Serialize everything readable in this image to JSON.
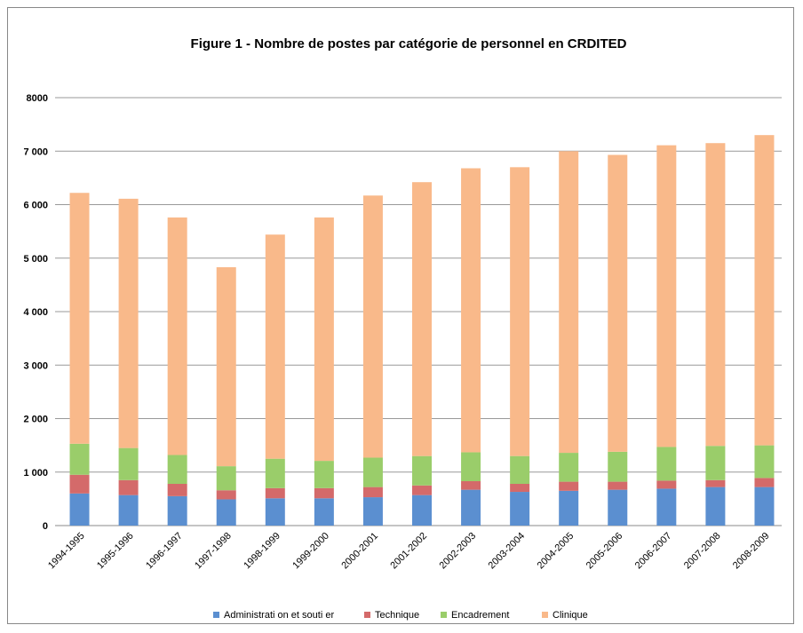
{
  "chart_data": {
    "type": "stacked_bar",
    "title": "Figure 1 - Nombre de postes par catégorie de personnel en CRDITED",
    "categories": [
      "1994-1995",
      "1995-1996",
      "1996-1997",
      "1997-1998",
      "1998-1999",
      "1999-2000",
      "2000-2001",
      "2001-2002",
      "2002-2003",
      "2003-2004",
      "2004-2005",
      "2005-2006",
      "2006-2007",
      "2007-2008",
      "2008-2009"
    ],
    "series": [
      {
        "name": "Administrati on et souti er",
        "color": "#5b8fd0",
        "values": [
          600,
          570,
          550,
          490,
          510,
          510,
          530,
          570,
          670,
          630,
          650,
          670,
          690,
          720,
          720
        ]
      },
      {
        "name": "Technique",
        "color": "#d46a6a",
        "values": [
          350,
          280,
          230,
          170,
          190,
          190,
          190,
          180,
          160,
          150,
          170,
          150,
          150,
          130,
          170
        ]
      },
      {
        "name": "Encadrement",
        "color": "#9acd6a",
        "values": [
          580,
          600,
          540,
          450,
          550,
          510,
          550,
          550,
          540,
          520,
          540,
          560,
          630,
          640,
          610
        ]
      },
      {
        "name": "Clinique",
        "color": "#f9b98a",
        "values": [
          4690,
          4660,
          4440,
          3720,
          4190,
          4550,
          4900,
          5120,
          5310,
          5400,
          5640,
          5550,
          5640,
          5660,
          5800
        ]
      }
    ],
    "ylim": [
      0,
      8000
    ],
    "yticks": [
      0,
      {
        "value": 1000,
        "label": "1 000"
      },
      {
        "value": 2000,
        "label": "2 000"
      },
      {
        "value": 3000,
        "label": "3 000"
      },
      {
        "value": 4000,
        "label": "4 000"
      },
      {
        "value": 5000,
        "label": "5 000"
      },
      {
        "value": 6000,
        "label": "6 000"
      },
      {
        "value": 7000,
        "label": "7 000"
      },
      8000
    ],
    "grid": true,
    "legend": "bottom"
  }
}
